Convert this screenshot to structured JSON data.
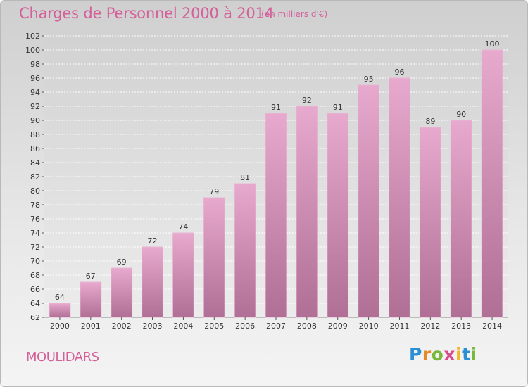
{
  "header": {
    "title": "Charges de Personnel 2000 à 2014",
    "subtitle": "(en milliers d'€)"
  },
  "footer": {
    "commune": "MOULIDARS",
    "logo_letters": [
      {
        "char": "P",
        "color": "#2a8fd4"
      },
      {
        "char": "r",
        "color": "#e8882a"
      },
      {
        "char": "o",
        "color": "#78b83a"
      },
      {
        "char": "x",
        "color": "#d94a8a"
      },
      {
        "char": "i",
        "color": "#f2b62a"
      },
      {
        "char": "t",
        "color": "#2a8fd4"
      },
      {
        "char": "i",
        "color": "#78b83a"
      }
    ]
  },
  "chart_data": {
    "type": "bar",
    "title": "Charges de Personnel 2000 à 2014",
    "subtitle": "(en milliers d'€)",
    "categories": [
      "2000",
      "2001",
      "2002",
      "2003",
      "2004",
      "2005",
      "2006",
      "2007",
      "2008",
      "2009",
      "2010",
      "2011",
      "2012",
      "2013",
      "2014"
    ],
    "values": [
      64,
      67,
      69,
      72,
      74,
      79,
      81,
      91,
      92,
      91,
      95,
      96,
      89,
      90,
      100
    ],
    "ylim": [
      62,
      102
    ],
    "yticks": [
      62,
      64,
      66,
      68,
      70,
      72,
      74,
      76,
      78,
      80,
      82,
      84,
      86,
      88,
      90,
      92,
      94,
      96,
      98,
      100,
      102
    ],
    "grid": true,
    "bar_color_top": "#e7a9cd",
    "bar_color_bottom": "#b06f95",
    "data_labels": true
  }
}
